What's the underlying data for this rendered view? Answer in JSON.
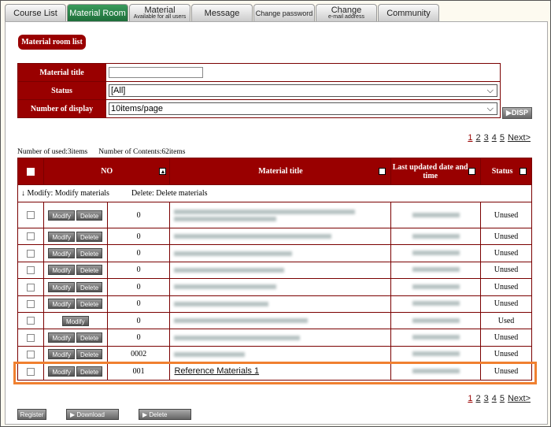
{
  "tabs": [
    {
      "label": "Course List"
    },
    {
      "label": "Material Room",
      "active": true
    },
    {
      "label": "Material",
      "sub": "Available for all users"
    },
    {
      "label": "Message"
    },
    {
      "label": "Change password"
    },
    {
      "label": "Change",
      "sub": "e-mail address"
    },
    {
      "label": "Community"
    }
  ],
  "section_title": "Material room list",
  "search": {
    "title_label": "Material title",
    "title_value": "",
    "status_label": "Status",
    "status_value": "[All]",
    "display_label": "Number of display",
    "display_value": "10items/page",
    "disp_button": "▶DISP"
  },
  "pagination": {
    "pages": [
      "1",
      "2",
      "3",
      "4",
      "5"
    ],
    "current": "1",
    "next": "Next>"
  },
  "counts": {
    "used": "Number of used:3items",
    "contents": "Number of Contents:62items"
  },
  "table": {
    "headers": {
      "no": "NO",
      "title": "Material title",
      "updated": "Last updated date and time",
      "status": "Status"
    },
    "note_modify": "↓ Modify: Modify materials",
    "note_delete": "Delete: Delete materials",
    "modify_label": "Modify",
    "delete_label": "Delete",
    "rows": [
      {
        "no": "0",
        "status": "Unused",
        "deletable": true
      },
      {
        "no": "0",
        "status": "Unused",
        "deletable": true
      },
      {
        "no": "0",
        "status": "Unused",
        "deletable": true
      },
      {
        "no": "0",
        "status": "Unused",
        "deletable": true
      },
      {
        "no": "0",
        "status": "Unused",
        "deletable": true
      },
      {
        "no": "0",
        "status": "Unused",
        "deletable": true
      },
      {
        "no": "0",
        "status": "Used",
        "deletable": false
      },
      {
        "no": "0",
        "status": "Unused",
        "deletable": true
      },
      {
        "no": "0002",
        "status": "Unused",
        "deletable": true
      },
      {
        "no": "001",
        "title": "Reference Materials 1",
        "status": "Unused",
        "deletable": true,
        "highlighted": true
      }
    ]
  },
  "bottom": {
    "register": "Register",
    "download": "▶ Download",
    "delete": "▶  Delete"
  },
  "colors": {
    "header": "#990000",
    "active_tab": "#1e6e3a",
    "highlight": "#f08030"
  }
}
